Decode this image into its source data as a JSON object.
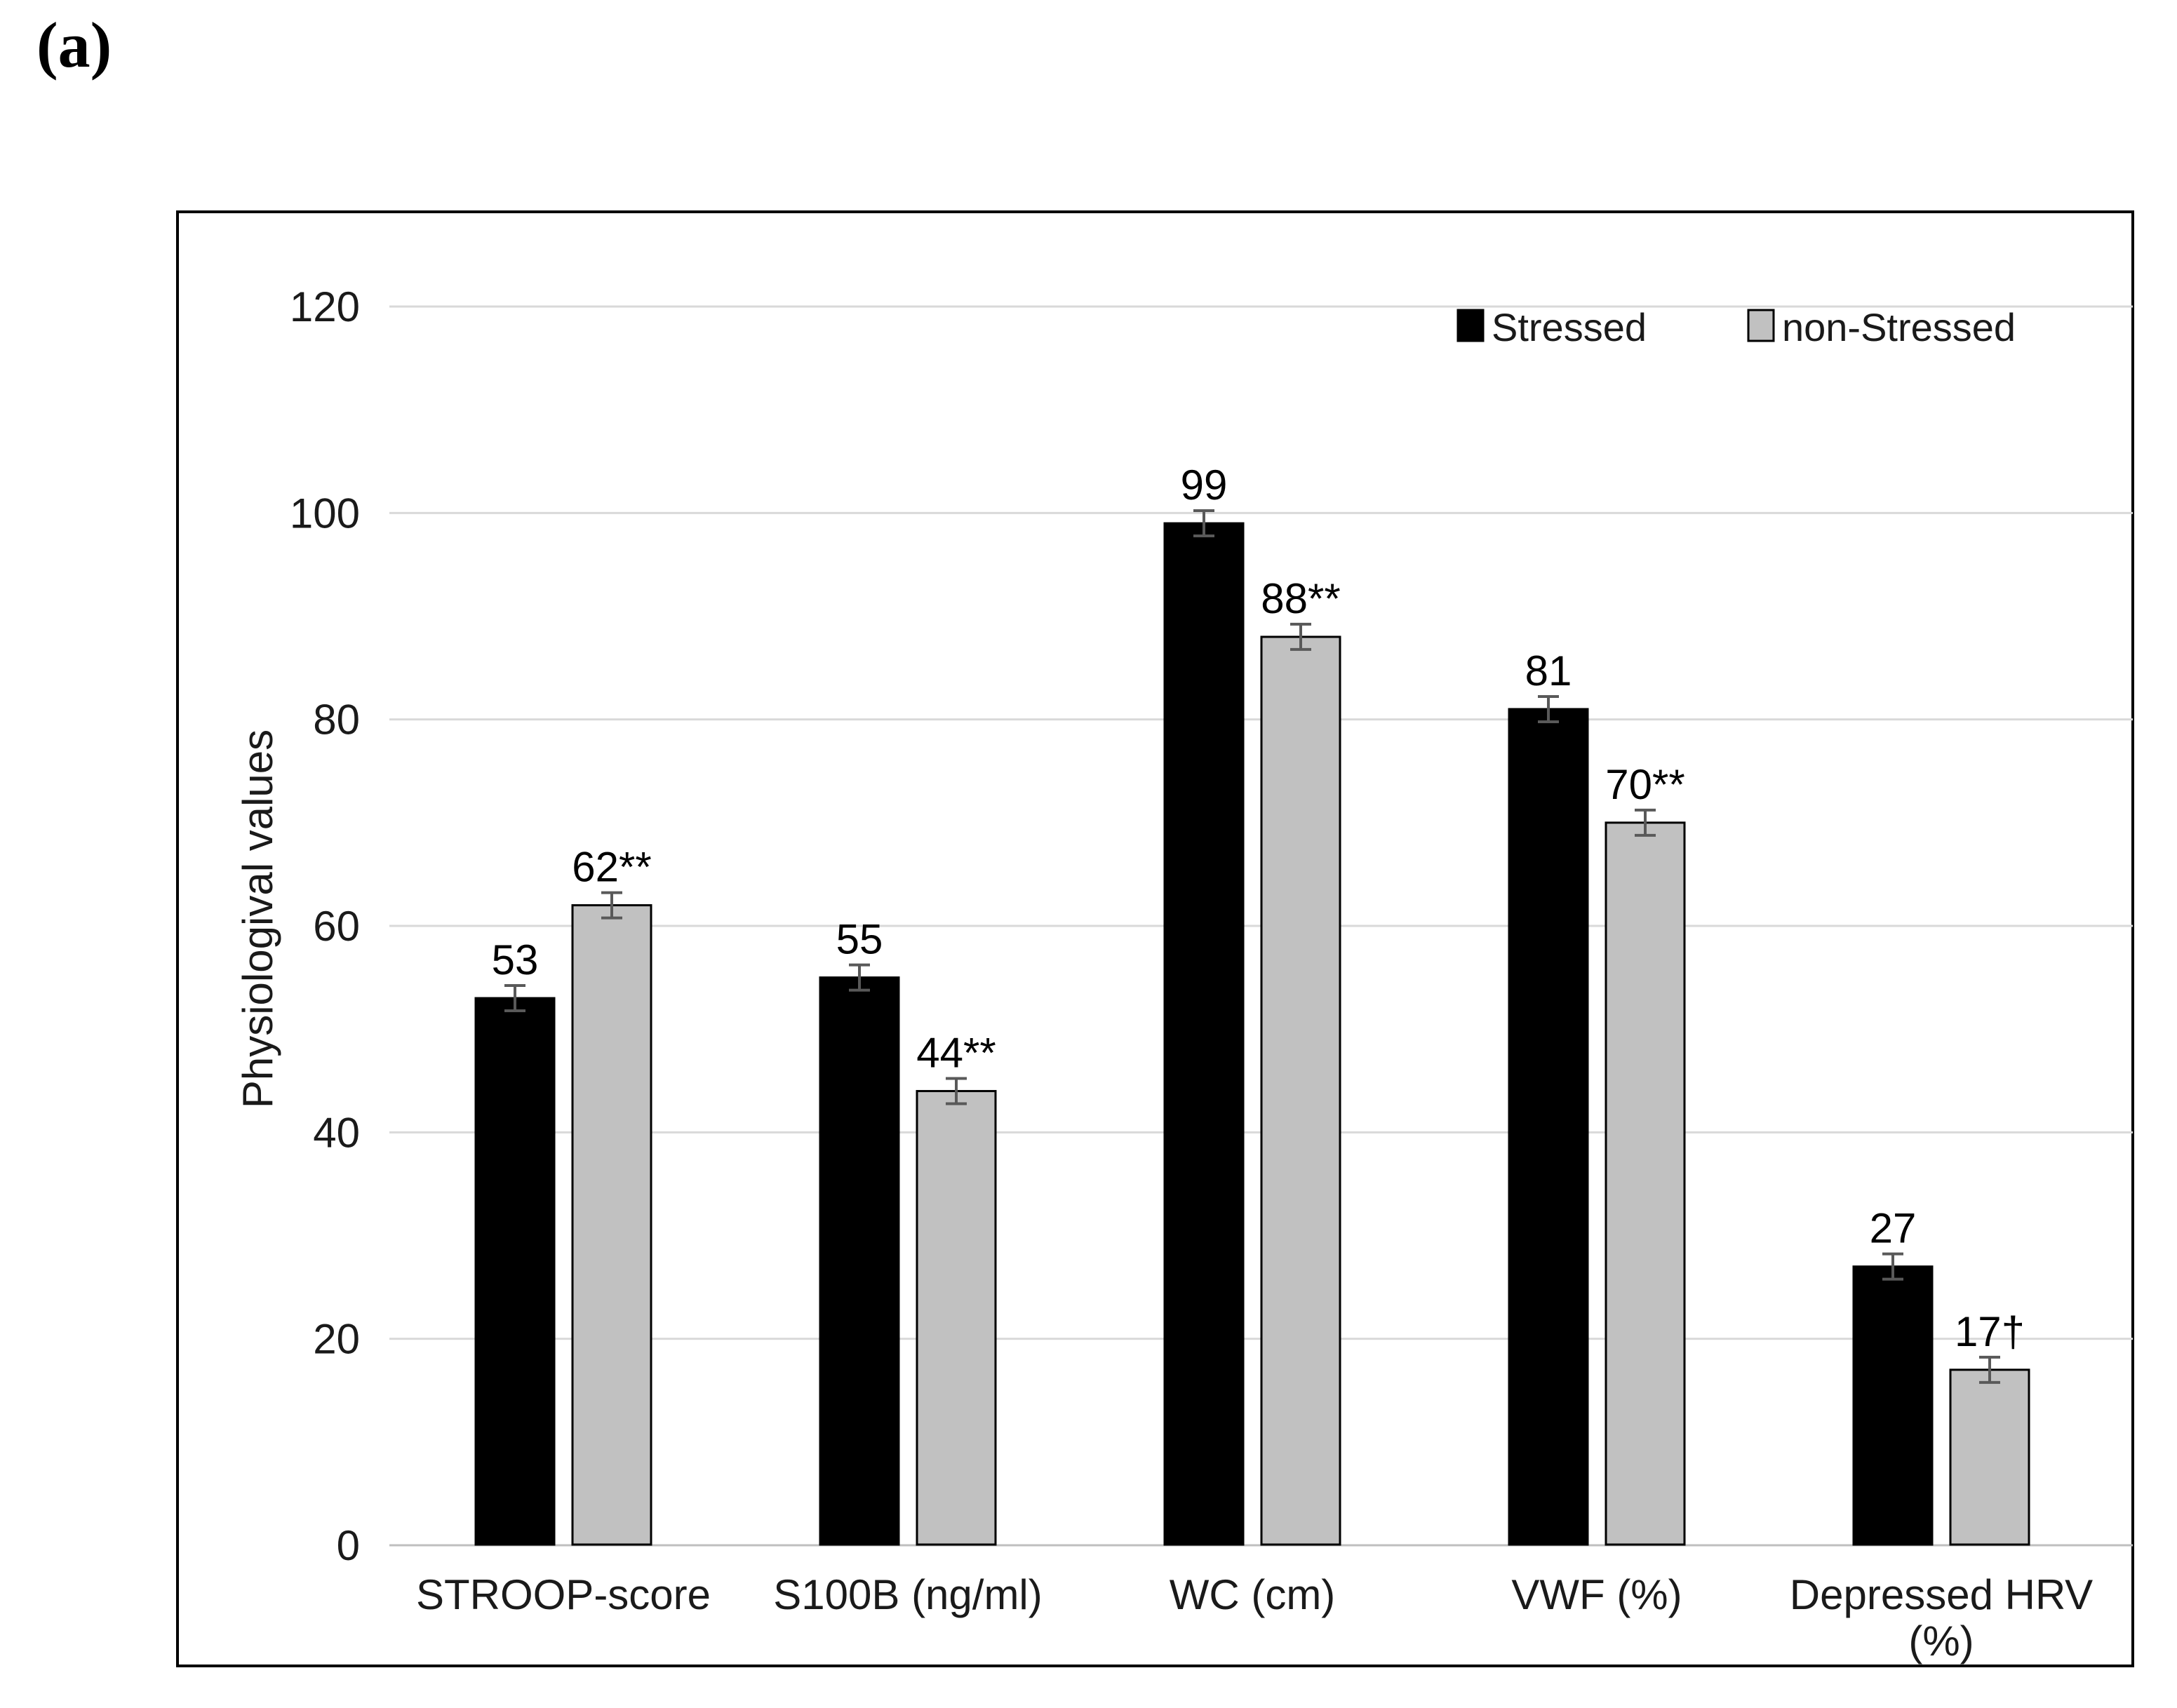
{
  "panel_label": "(a)",
  "chart_data": {
    "type": "bar",
    "title": "",
    "xlabel": "",
    "ylabel": "Physiologival values",
    "ylim": [
      0,
      120
    ],
    "yticks": [
      0,
      20,
      40,
      60,
      80,
      100,
      120
    ],
    "grid": true,
    "legend_position": "top-right-inside",
    "categories": [
      "STROOP-score",
      "S100B (ng/ml)",
      "WC (cm)",
      "VWF (%)",
      "Depressed HRV\n(%)"
    ],
    "series": [
      {
        "name": "Stressed",
        "color": "#000000",
        "values": [
          53,
          55,
          99,
          81,
          27
        ],
        "data_labels": [
          "53",
          "55",
          "99",
          "81",
          "27"
        ]
      },
      {
        "name": "non-Stressed",
        "color": "#c1c1c1",
        "values": [
          62,
          44,
          88,
          70,
          17
        ],
        "data_labels": [
          "62**",
          "44**",
          "88**",
          "70**",
          "17†"
        ]
      }
    ],
    "error_bars": {
      "visible": true,
      "approx_plus_minus": 1.2
    },
    "colors": {
      "gridline": "#d9d9d9",
      "axis_line": "#bfbfbf",
      "error_bar": "#595959",
      "frame_border": "#000000",
      "text": "#1a1a1a"
    }
  }
}
